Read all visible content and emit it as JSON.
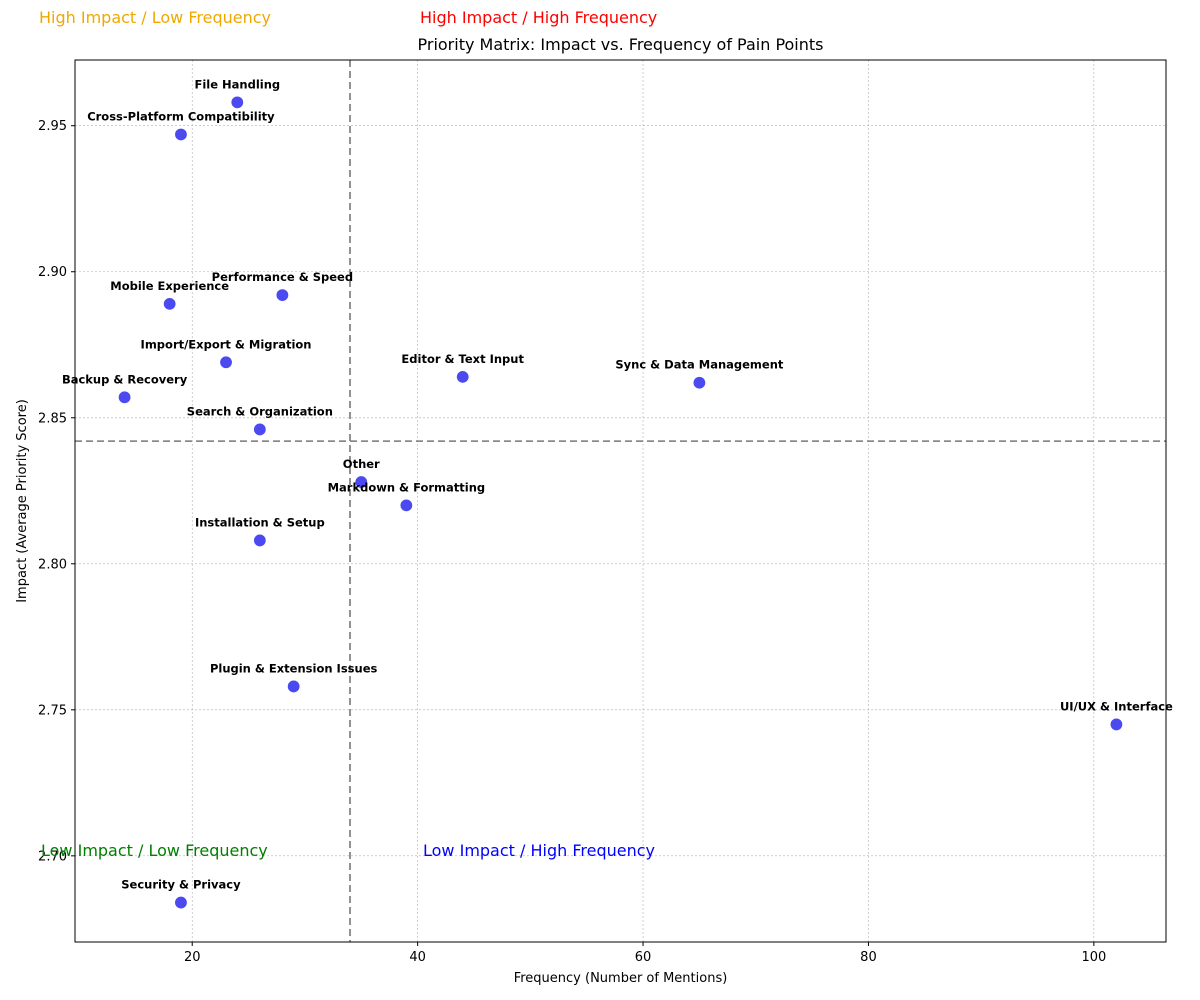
{
  "chart_data": {
    "type": "scatter",
    "title": "Priority Matrix: Impact vs. Frequency of Pain Points",
    "xlabel": "Frequency (Number of Mentions)",
    "ylabel": "Impact (Average Priority Score)",
    "xlim": [
      9.6,
      106.4
    ],
    "ylim": [
      2.6705,
      2.9725
    ],
    "xticks": [
      20,
      40,
      60,
      80,
      100
    ],
    "yticks": [
      2.7,
      2.75,
      2.8,
      2.85,
      2.9,
      2.95
    ],
    "xtick_labels": [
      "20",
      "40",
      "60",
      "80",
      "100"
    ],
    "ytick_labels": [
      "2.70",
      "2.75",
      "2.80",
      "2.85",
      "2.90",
      "2.95"
    ],
    "grid": true,
    "point_color": "#3b3bef",
    "threshold_x": 34,
    "threshold_y": 2.842,
    "points": [
      {
        "label": "File Handling",
        "x": 24,
        "y": 2.958
      },
      {
        "label": "Cross-Platform Compatibility",
        "x": 19,
        "y": 2.947
      },
      {
        "label": "Performance & Speed",
        "x": 28,
        "y": 2.892
      },
      {
        "label": "Mobile Experience",
        "x": 18,
        "y": 2.889
      },
      {
        "label": "Import/Export & Migration",
        "x": 23,
        "y": 2.869
      },
      {
        "label": "Editor & Text Input",
        "x": 44,
        "y": 2.864
      },
      {
        "label": "Sync & Data Management",
        "x": 65,
        "y": 2.862
      },
      {
        "label": "Backup & Recovery",
        "x": 14,
        "y": 2.857
      },
      {
        "label": "Search & Organization",
        "x": 26,
        "y": 2.846
      },
      {
        "label": "Other",
        "x": 35,
        "y": 2.828
      },
      {
        "label": "Markdown & Formatting",
        "x": 39,
        "y": 2.82
      },
      {
        "label": "Installation & Setup",
        "x": 26,
        "y": 2.808
      },
      {
        "label": "Plugin & Extension Issues",
        "x": 29,
        "y": 2.758
      },
      {
        "label": "UI/UX & Interface",
        "x": 102,
        "y": 2.745
      },
      {
        "label": "Security & Privacy",
        "x": 19,
        "y": 2.684
      }
    ],
    "quadrant_labels": [
      {
        "text": "High Impact / Low Frequency",
        "color": "#f0a800"
      },
      {
        "text": "High Impact / High Frequency",
        "color": "#ff0000"
      },
      {
        "text": "Low Impact / Low Frequency",
        "color": "#008000"
      },
      {
        "text": "Low Impact / High Frequency",
        "color": "#0000ff"
      }
    ]
  }
}
